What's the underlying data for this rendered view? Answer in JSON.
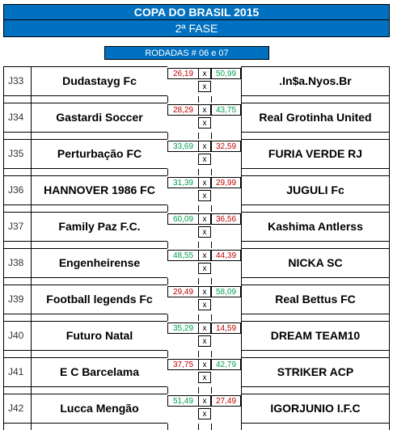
{
  "title": "COPA DO BRASIL 2015",
  "phase": "2ª FASE",
  "rodadas": "RODADAS # 06 e 07",
  "colors": {
    "header_bg": "#0070c0",
    "red": "#c00000",
    "green": "#00a050"
  },
  "matches": [
    {
      "id": "J33",
      "home": "Dudastayg Fc",
      "home_score": "26,19",
      "home_color": "red",
      "x": "x",
      "away_score": "50,99",
      "away_color": "green",
      "away": ".In$a.Nyos.Br"
    },
    {
      "id": "J34",
      "home": "Gastardi Soccer",
      "home_score": "28,29",
      "home_color": "red",
      "x": "x",
      "away_score": "43,75",
      "away_color": "green",
      "away": "Real Grotinha United"
    },
    {
      "id": "J35",
      "home": "Perturbação FC",
      "home_score": "33,69",
      "home_color": "green",
      "x": "x",
      "away_score": "32,59",
      "away_color": "red",
      "away": "FURIA VERDE RJ"
    },
    {
      "id": "J36",
      "home": "HANNOVER 1986 FC",
      "home_score": "31,39",
      "home_color": "green",
      "x": "x",
      "away_score": "29,99",
      "away_color": "red",
      "away": "JUGULI Fc"
    },
    {
      "id": "J37",
      "home": "Family Paz F.C.",
      "home_score": "60,09",
      "home_color": "green",
      "x": "x",
      "away_score": "36,56",
      "away_color": "red",
      "away": "Kashima Antlerss"
    },
    {
      "id": "J38",
      "home": "Engenheirense",
      "home_score": "48,55",
      "home_color": "green",
      "x": "x",
      "away_score": "44,39",
      "away_color": "red",
      "away": "NICKA SC"
    },
    {
      "id": "J39",
      "home": "Football legends Fc",
      "home_score": "29,49",
      "home_color": "red",
      "x": "x",
      "away_score": "58,09",
      "away_color": "green",
      "away": "Real Bettus FC"
    },
    {
      "id": "J40",
      "home": "Futuro Natal",
      "home_score": "35,29",
      "home_color": "green",
      "x": "x",
      "away_score": "14,59",
      "away_color": "red",
      "away": "DREAM TEAM10"
    },
    {
      "id": "J41",
      "home": "E C Barcelama",
      "home_score": "37,75",
      "home_color": "red",
      "x": "x",
      "away_score": "42,79",
      "away_color": "green",
      "away": "STRIKER ACP"
    },
    {
      "id": "J42",
      "home": "Lucca Mengão",
      "home_score": "51,49",
      "home_color": "green",
      "x": "x",
      "away_score": "27,49",
      "away_color": "red",
      "away": "IGORJUNIO I.F.C"
    }
  ]
}
